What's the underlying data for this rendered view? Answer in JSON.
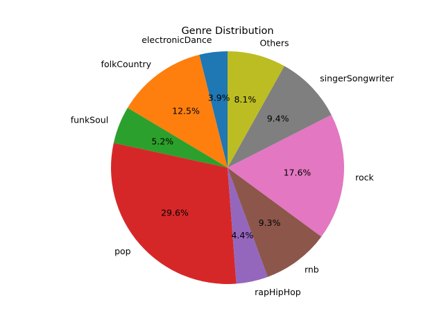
{
  "chart_data": {
    "type": "pie",
    "title": "Genre Distribution",
    "start_angle_deg": 90,
    "direction": "counterclockwise",
    "slices": [
      {
        "label": "electronicDance",
        "value": 3.9,
        "pct_text": "3.9%",
        "color": "#1f77b4"
      },
      {
        "label": "folkCountry",
        "value": 12.5,
        "pct_text": "12.5%",
        "color": "#ff7f0e"
      },
      {
        "label": "funkSoul",
        "value": 5.2,
        "pct_text": "5.2%",
        "color": "#2ca02c"
      },
      {
        "label": "pop",
        "value": 29.6,
        "pct_text": "29.6%",
        "color": "#d62728"
      },
      {
        "label": "rapHipHop",
        "value": 4.4,
        "pct_text": "4.4%",
        "color": "#9467bd"
      },
      {
        "label": "rnb",
        "value": 9.3,
        "pct_text": "9.3%",
        "color": "#8c564b"
      },
      {
        "label": "rock",
        "value": 17.6,
        "pct_text": "17.6%",
        "color": "#e377c2"
      },
      {
        "label": "singerSongwriter",
        "value": 9.4,
        "pct_text": "9.4%",
        "color": "#7f7f7f"
      },
      {
        "label": "Others",
        "value": 8.1,
        "pct_text": "8.1%",
        "color": "#bcbd22"
      }
    ]
  }
}
